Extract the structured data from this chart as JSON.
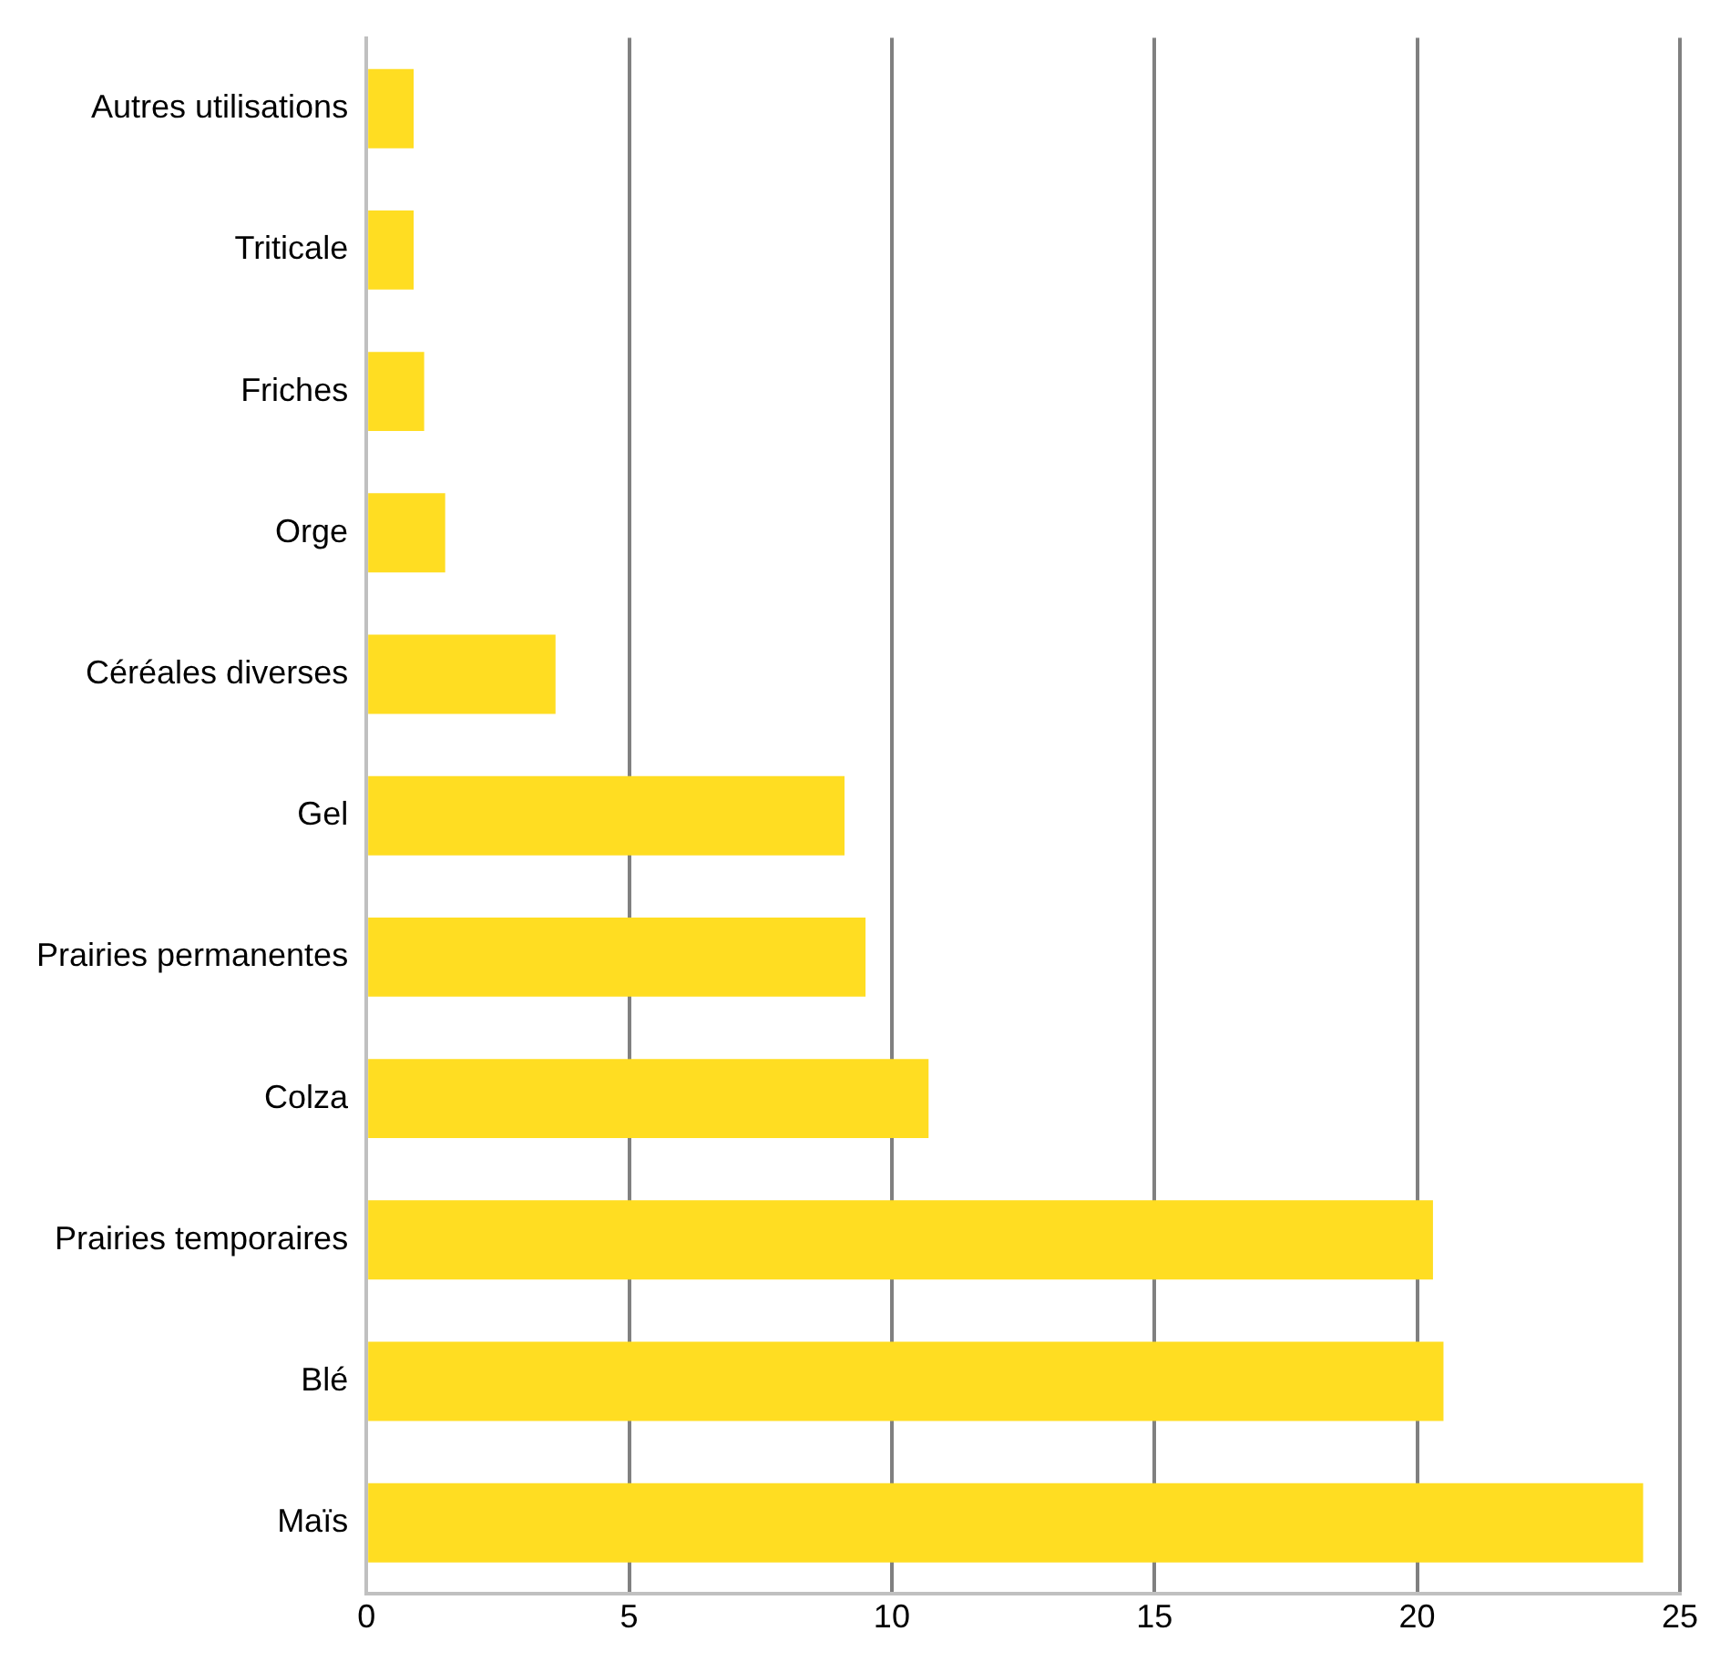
{
  "chart_data": {
    "type": "bar",
    "orientation": "horizontal",
    "categories": [
      "Autres utilisations",
      "Triticale",
      "Friches",
      "Orge",
      "Céréales diverses",
      "Gel",
      "Prairies permanentes",
      "Colza",
      "Prairies temporaires",
      "Blé",
      "Maïs"
    ],
    "values": [
      0.9,
      0.9,
      1.1,
      1.5,
      3.6,
      9.1,
      9.5,
      10.7,
      20.3,
      20.5,
      24.3
    ],
    "color": "#ffdd22",
    "xlim": [
      0,
      25
    ],
    "xticks": [
      0,
      5,
      10,
      15,
      20,
      25
    ],
    "grid": "x",
    "legend": false
  }
}
